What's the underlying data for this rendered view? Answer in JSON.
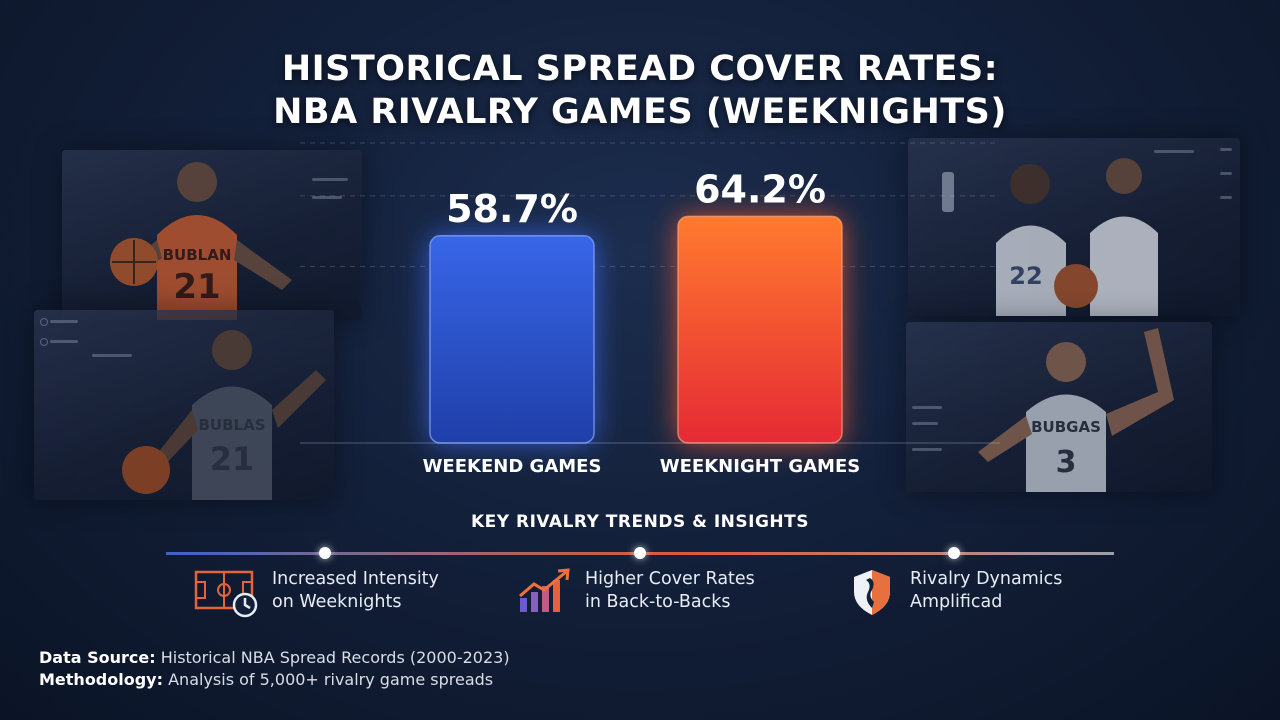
{
  "title_lines": [
    "HISTORICAL SPREAD COVER RATES:",
    "NBA RIVALRY GAMES (WEEKNIGHTS)"
  ],
  "chart_data": {
    "type": "bar",
    "title": "HISTORICAL SPREAD COVER RATES: NBA RIVALRY GAMES (WEEKNIGHTS)",
    "categories": [
      "WEEKEND GAMES",
      "WEEKNIGHT GAMES"
    ],
    "values": [
      58.7,
      64.2
    ],
    "value_labels": [
      "58.7%",
      "64.2%"
    ],
    "unit": "%",
    "colors": [
      "#2f5be0",
      "#f0552e"
    ],
    "grid": true,
    "legend": "none"
  },
  "insights": {
    "heading": "KEY RIVALRY TRENDS & INSIGHTS",
    "items": [
      {
        "icon": "court-clock-icon",
        "line1": "Increased Intensity",
        "line2": "on Weeknights"
      },
      {
        "icon": "rising-bars-icon",
        "line1": "Higher Cover Rates",
        "line2": "in Back-to-Backs"
      },
      {
        "icon": "shield-icon",
        "line1": "Rivalry Dynamics",
        "line2": "Amplificad"
      }
    ]
  },
  "footer": {
    "source_label": "Data Source:",
    "source_text": "Historical NBA Spread Records (2000-2023)",
    "method_label": "Methodology:",
    "method_text": "Analysis of 5,000+ rivalry game spreads"
  },
  "jerseys": [
    {
      "team": "BUBLAN",
      "number": "21"
    },
    {
      "team": "BUBLAS",
      "number": "21"
    },
    {
      "team": "",
      "number": "22"
    },
    {
      "team": "BUBGAS",
      "number": "3"
    }
  ]
}
